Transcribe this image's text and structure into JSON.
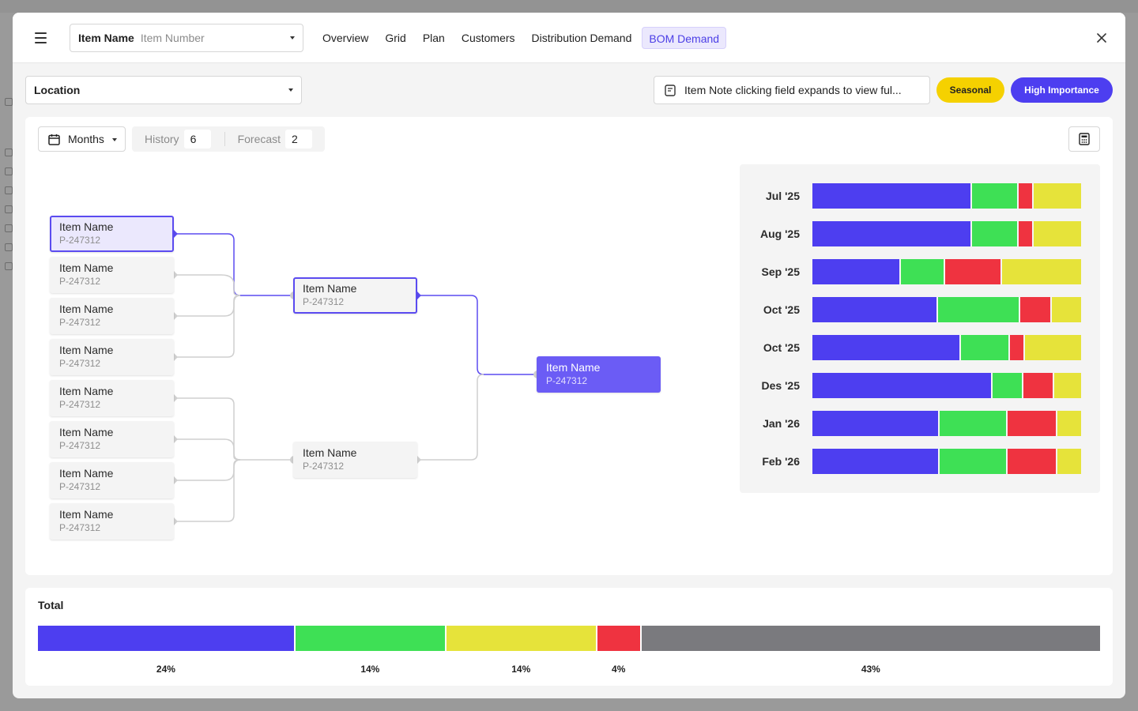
{
  "header": {
    "item_select": {
      "name": "Item Name",
      "placeholder": "Item Number"
    },
    "tabs": [
      {
        "label": "Overview",
        "active": false
      },
      {
        "label": "Grid",
        "active": false
      },
      {
        "label": "Plan",
        "active": false
      },
      {
        "label": "Customers",
        "active": false
      },
      {
        "label": "Distribution Demand",
        "active": false
      },
      {
        "label": "BOM Demand",
        "active": true
      }
    ]
  },
  "filters": {
    "location": "Location",
    "item_note": "Item Note clicking field expands to view ful...",
    "tags": {
      "seasonal": "Seasonal",
      "high": "High Importance"
    }
  },
  "controls": {
    "period": "Months",
    "history_label": "History",
    "history_value": "6",
    "forecast_label": "Forecast",
    "forecast_value": "2"
  },
  "tree": {
    "leaves": [
      {
        "name": "Item Name",
        "code": "P-247312",
        "selected": true
      },
      {
        "name": "Item Name",
        "code": "P-247312"
      },
      {
        "name": "Item Name",
        "code": "P-247312"
      },
      {
        "name": "Item Name",
        "code": "P-247312"
      },
      {
        "name": "Item Name",
        "code": "P-247312"
      },
      {
        "name": "Item Name",
        "code": "P-247312"
      },
      {
        "name": "Item Name",
        "code": "P-247312"
      },
      {
        "name": "Item Name",
        "code": "P-247312"
      }
    ],
    "mid": [
      {
        "name": "Item Name",
        "code": "P-247312",
        "selected": true
      },
      {
        "name": "Item Name",
        "code": "P-247312"
      }
    ],
    "root": {
      "name": "Item Name",
      "code": "P-247312"
    }
  },
  "colors": {
    "blue": "#4d3ef0",
    "green": "#3ee055",
    "red": "#ef3340",
    "yellow": "#e6e33a",
    "gray": "#7a7a7e",
    "accent": "#5b4bf0"
  },
  "chart_data": {
    "type": "bar",
    "stacked": true,
    "orientation": "horizontal",
    "categories": [
      "Jul '25",
      "Aug '25",
      "Sep '25",
      "Oct '25",
      "Oct '25",
      "Des '25",
      "Jan '26",
      "Feb '26"
    ],
    "series": [
      {
        "color": "blue",
        "values": [
          60,
          60,
          33,
          46,
          55,
          67,
          47,
          47
        ]
      },
      {
        "color": "green",
        "values": [
          17,
          17,
          16,
          30,
          18,
          11,
          25,
          25
        ]
      },
      {
        "color": "red",
        "values": [
          5,
          5,
          21,
          11,
          5,
          11,
          18,
          18
        ]
      },
      {
        "color": "yellow",
        "values": [
          18,
          18,
          30,
          11,
          21,
          10,
          9,
          9
        ]
      }
    ]
  },
  "total": {
    "title": "Total",
    "segments": [
      {
        "color": "blue",
        "pct": 24,
        "label": "24%"
      },
      {
        "color": "green",
        "pct": 14,
        "label": "14%"
      },
      {
        "color": "yellow",
        "pct": 14,
        "label": "14%"
      },
      {
        "color": "red",
        "pct": 4,
        "label": "4%"
      },
      {
        "color": "gray",
        "pct": 43,
        "label": "43%"
      }
    ]
  }
}
